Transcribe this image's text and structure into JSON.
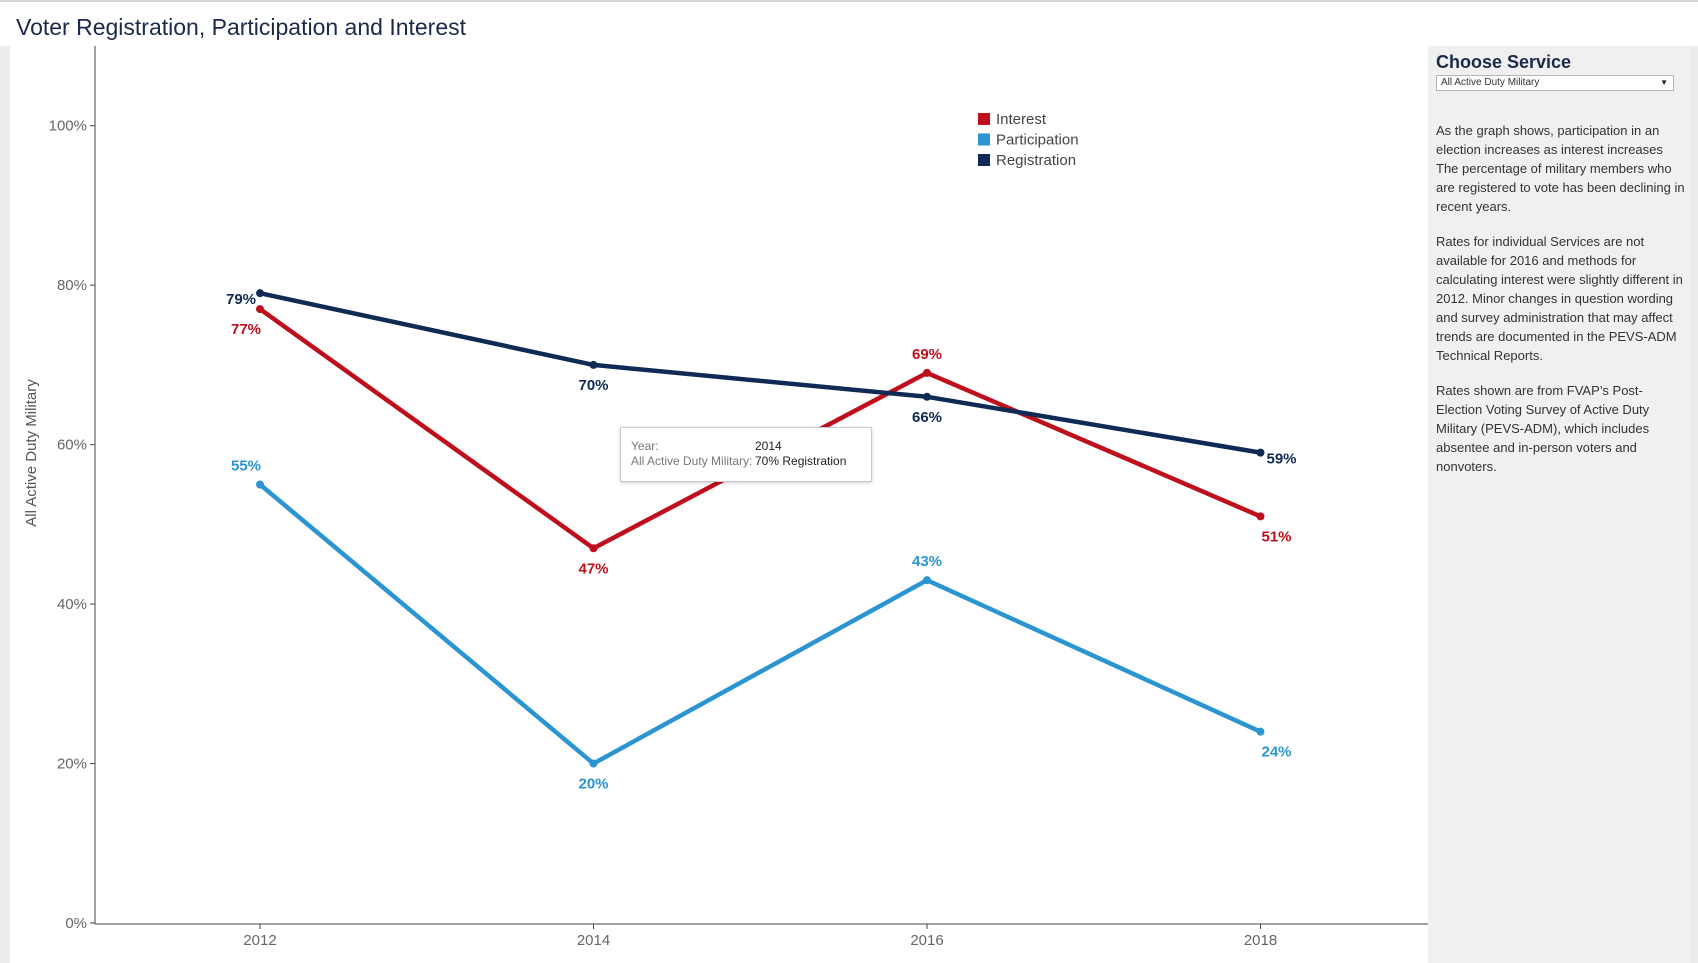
{
  "title": "Voter Registration, Participation and Interest",
  "sidebar": {
    "heading": "Choose Service",
    "selected_service": "All Active Duty Military",
    "paragraphs": [
      "As the graph shows, participation in an election increases as interest increases The percentage of military members who are registered to vote has been declining in recent years.",
      "Rates for individual Services are not available for 2016 and methods for calculating interest were slightly different in 2012. Minor changes in question wording and survey administration that may affect trends are documented in the PEVS-ADM Technical Reports.",
      "Rates shown are from FVAP’s Post-Election Voting Survey of Active Duty Military (PEVS-ADM), which includes absentee and in-person voters and nonvoters."
    ]
  },
  "tooltip": {
    "year_label": "Year:",
    "year_value": "2014",
    "series_label": "All Active Duty Military:",
    "series_value": "70% Registration"
  },
  "chart_data": {
    "type": "line",
    "ylabel": "All Active Duty Military",
    "xlabel": "",
    "categories": [
      "2012",
      "2014",
      "2016",
      "2018"
    ],
    "ylim": [
      0,
      110
    ],
    "y_ticks": [
      "0%",
      "20%",
      "40%",
      "60%",
      "80%",
      "100%"
    ],
    "grid": false,
    "legend_position": "top-right",
    "series": [
      {
        "name": "Interest",
        "color": "#c00f1c",
        "values": [
          77,
          47,
          69,
          51
        ]
      },
      {
        "name": "Participation",
        "color": "#2b95d2",
        "values": [
          55,
          20,
          43,
          24
        ]
      },
      {
        "name": "Registration",
        "color": "#0f2a54",
        "values": [
          79,
          70,
          66,
          59
        ]
      }
    ]
  }
}
